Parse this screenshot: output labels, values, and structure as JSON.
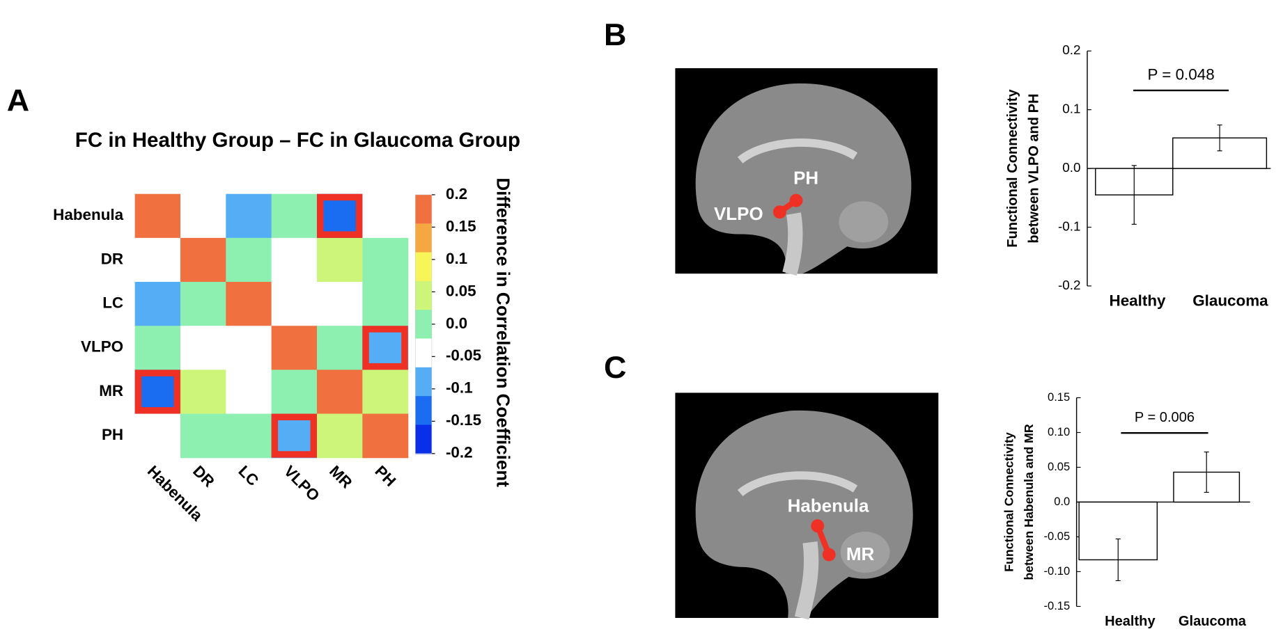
{
  "chart_data": [
    {
      "type": "heatmap",
      "panel": "A",
      "title": "FC in Healthy Group – FC in Glaucoma Group",
      "rows": [
        "Habenula",
        "DR",
        "LC",
        "VLPO",
        "MR",
        "PH"
      ],
      "columns": [
        "Habenula",
        "DR",
        "LC",
        "VLPO",
        "MR",
        "PH"
      ],
      "values": [
        [
          0.2,
          -0.05,
          -0.1,
          0.0,
          -0.15,
          -0.05
        ],
        [
          -0.05,
          0.2,
          0.0,
          -0.05,
          0.05,
          0.0
        ],
        [
          -0.1,
          0.0,
          0.2,
          -0.05,
          -0.05,
          0.0
        ],
        [
          0.0,
          -0.05,
          -0.05,
          0.2,
          0.0,
          -0.1
        ],
        [
          -0.15,
          0.05,
          -0.05,
          0.0,
          0.2,
          0.05
        ],
        [
          -0.05,
          0.0,
          0.0,
          -0.1,
          0.05,
          0.2
        ]
      ],
      "highlight": [
        [
          0,
          4
        ],
        [
          3,
          5
        ],
        [
          4,
          0
        ],
        [
          5,
          3
        ]
      ],
      "highlight_color": "#ee3124",
      "colorbar": {
        "label": "Difference in Correlation Coefficient",
        "lim": [
          -0.2,
          0.2
        ],
        "colors": [
          "#f07040",
          "#f5a742",
          "#f7f55a",
          "#cdf57a",
          "#8ef0b0",
          "#ffffff",
          "#55aef5",
          "#1a6cf0",
          "#0a2fe8"
        ],
        "ticks": [
          0.2,
          0.15,
          0.1,
          0.05,
          {
            "value": 0.0,
            "label": "0.0"
          },
          -0.05,
          -0.1,
          -0.15,
          -0.2
        ]
      }
    },
    {
      "type": "bar",
      "panel": "B",
      "categories": [
        "Healthy",
        "Glaucoma"
      ],
      "values": [
        -0.045,
        0.052
      ],
      "errors": [
        0.05,
        0.022
      ],
      "ylim": [
        -0.2,
        0.2
      ],
      "yticks": [
        -0.2,
        -0.1,
        {
          "value": 0.0,
          "label": "0.0"
        },
        0.1,
        0.2
      ],
      "ylabel": [
        "Functional Connectivity",
        "between VLPO and PH"
      ],
      "annotation": "P = 0.048",
      "image_labels": [
        "PH",
        "VLPO"
      ]
    },
    {
      "type": "bar",
      "panel": "C",
      "categories": [
        "Healthy",
        "Glaucoma"
      ],
      "values": [
        -0.083,
        0.043
      ],
      "errors": [
        0.03,
        0.029
      ],
      "ylim": [
        -0.15,
        0.15
      ],
      "yticks": [
        -0.15,
        {
          "value": -0.1,
          "label": "-0.10"
        },
        -0.05,
        {
          "value": 0.0,
          "label": "0.0"
        },
        0.05,
        {
          "value": 0.1,
          "label": "0.10"
        },
        0.15
      ],
      "ylabel": [
        "Functional Connectivity",
        "between Habenula and MR"
      ],
      "annotation": "P = 0.006",
      "image_labels": [
        "Habenula",
        "MR"
      ]
    }
  ]
}
